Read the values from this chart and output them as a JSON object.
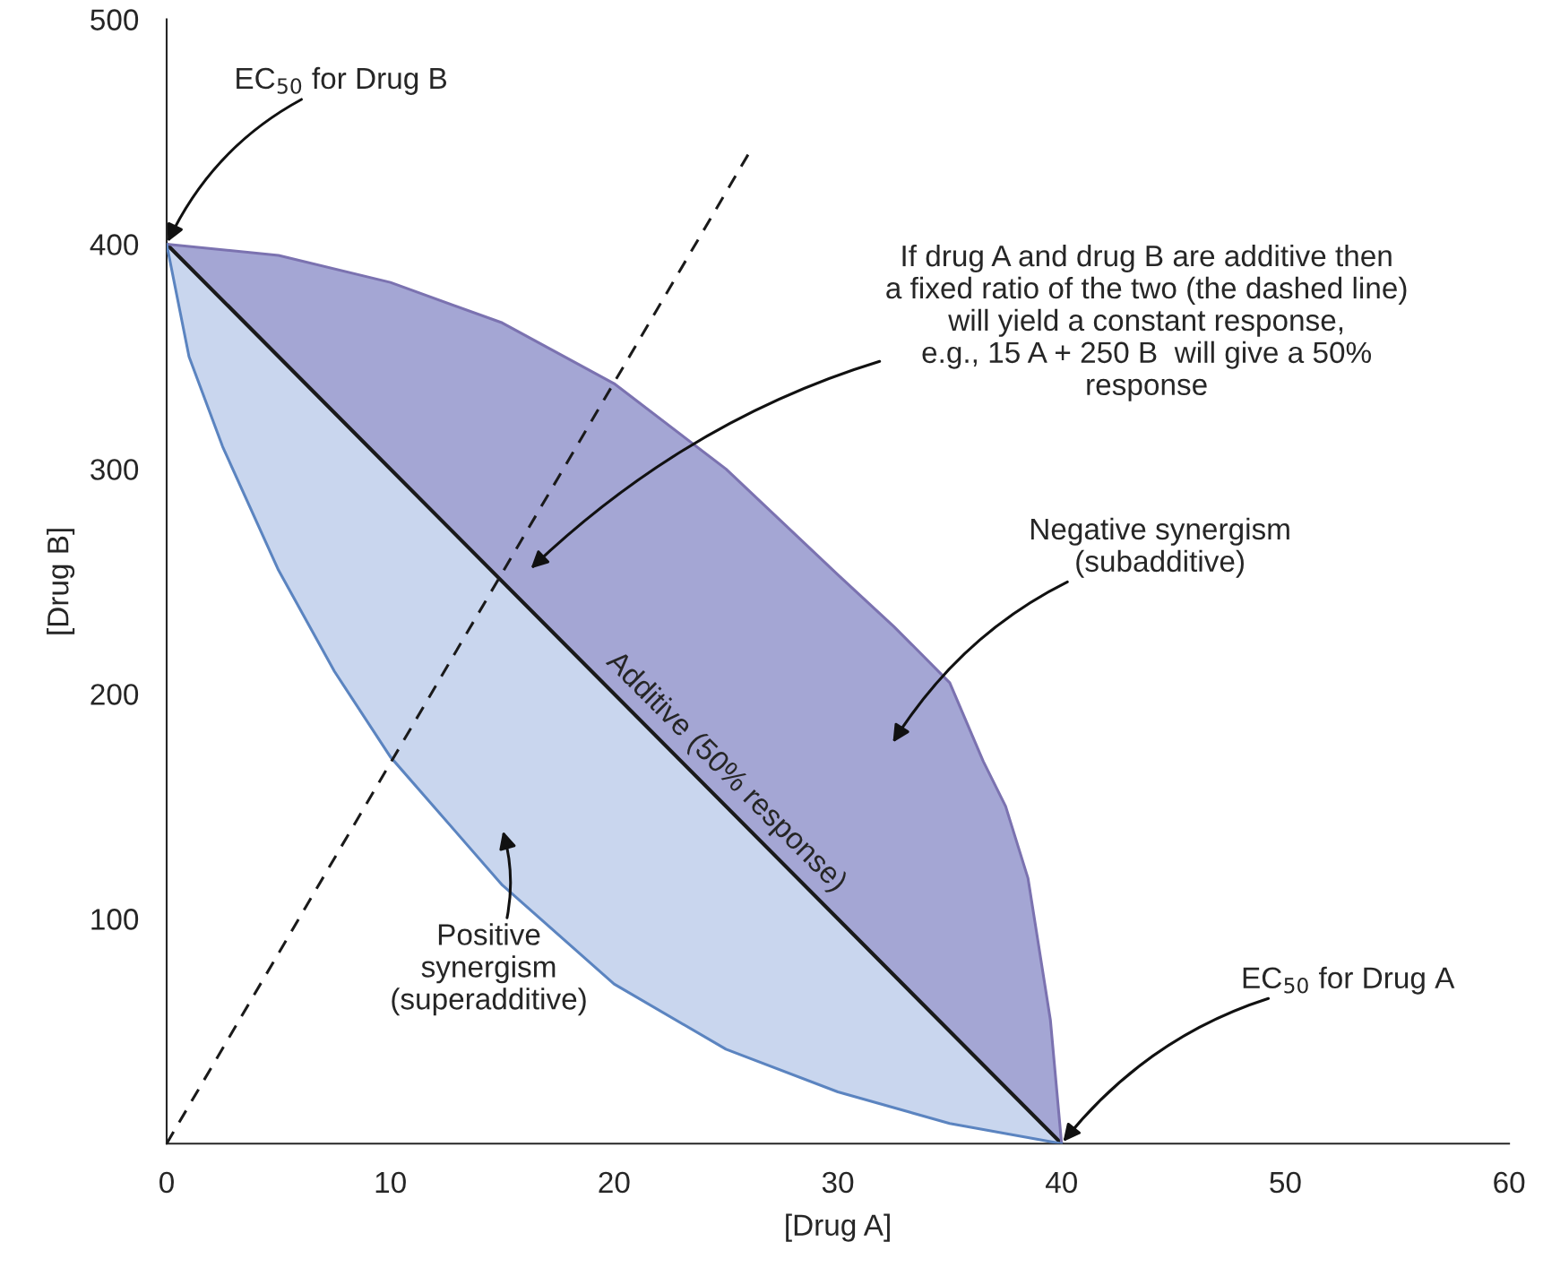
{
  "chart_data": {
    "type": "line",
    "xlabel": "[Drug A]",
    "ylabel": "[Drug B]",
    "xlim": [
      0,
      60
    ],
    "ylim": [
      0,
      500
    ],
    "xticks": [
      0,
      10,
      20,
      30,
      40,
      50,
      60
    ],
    "yticks": [
      100,
      200,
      300,
      400,
      500
    ],
    "grid": false,
    "legend": false,
    "series": [
      {
        "name": "Additive (50% response)",
        "color": "#1a1a1a",
        "x": [
          0,
          40
        ],
        "values": [
          400,
          0
        ]
      },
      {
        "color": "#7b72b0",
        "x": [
          0,
          5,
          10,
          15,
          20,
          25,
          30,
          32.5,
          35,
          36.5,
          37.5,
          38.5,
          39.5,
          40
        ],
        "values": [
          400,
          395,
          383,
          365,
          338,
          300,
          253,
          230,
          205,
          170,
          150,
          118,
          55,
          0
        ]
      },
      {
        "color": "#5b84c0",
        "x": [
          0,
          1,
          2.5,
          5,
          7.5,
          10,
          15,
          20,
          25,
          30,
          35,
          40
        ],
        "values": [
          400,
          350,
          310,
          255,
          210,
          172,
          115,
          71,
          42,
          23,
          9,
          0
        ]
      },
      {
        "color": "#1a1a1a",
        "line_style": "dashed",
        "x": [
          0,
          26
        ],
        "values": [
          0,
          440
        ]
      }
    ],
    "annotations": [
      {
        "text": "EC$_{50}$ for Drug B",
        "x": 0,
        "y": 400
      },
      "If drug A and drug B are additive then\na fixed ratio of the two (the dashed line)\nwill yield a constant response,\ne.g., 15 A + 250 B  will give a 50%\nresponse",
      "Negative synergism\n(subadditive)",
      "Positive\nsynergism\n(superadditive)",
      {
        "text": "EC$_{50}$ for Drug A",
        "x": 40,
        "y": 0
      }
    ]
  }
}
